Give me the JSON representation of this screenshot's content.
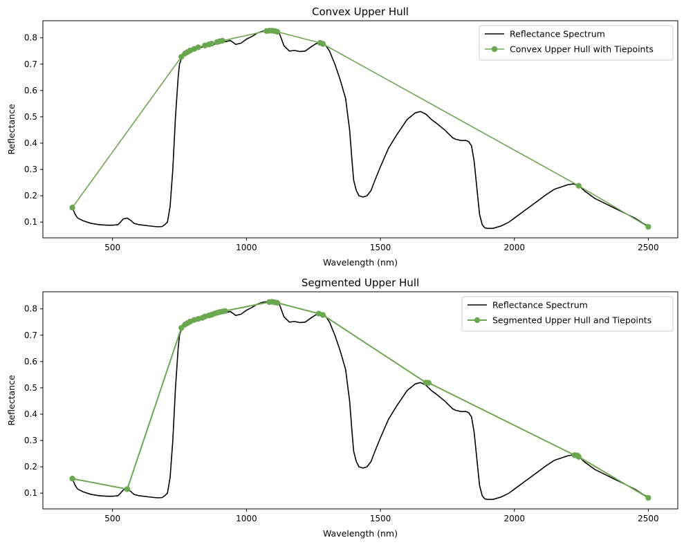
{
  "colors": {
    "spectrum": "#000000",
    "hull": "#6aa84f",
    "legend_border": "#cccccc"
  },
  "chart_data": [
    {
      "type": "line",
      "title": "Convex Upper Hull",
      "xlabel": "Wavelength (nm)",
      "ylabel": "Reflectance",
      "xlim": [
        240,
        2610
      ],
      "ylim": [
        0.04,
        0.865
      ],
      "xticks": [
        500,
        1000,
        1500,
        2000,
        2500
      ],
      "yticks": [
        0.1,
        0.2,
        0.3,
        0.4,
        0.5,
        0.6,
        0.7,
        0.8
      ],
      "grid": false,
      "legend_position": "top-right",
      "series": [
        {
          "name": "Reflectance Spectrum",
          "style": "line",
          "x": [
            350,
            360,
            370,
            390,
            420,
            450,
            480,
            500,
            520,
            530,
            540,
            555,
            570,
            580,
            600,
            640,
            670,
            685,
            695,
            705,
            715,
            725,
            735,
            745,
            750,
            760,
            770,
            800,
            850,
            880,
            900,
            920,
            940,
            960,
            980,
            1000,
            1020,
            1040,
            1060,
            1080,
            1100,
            1120,
            1140,
            1160,
            1180,
            1200,
            1220,
            1240,
            1260,
            1280,
            1290,
            1310,
            1330,
            1350,
            1370,
            1385,
            1395,
            1400,
            1410,
            1420,
            1435,
            1450,
            1465,
            1480,
            1500,
            1530,
            1560,
            1600,
            1630,
            1650,
            1670,
            1690,
            1710,
            1740,
            1770,
            1780,
            1800,
            1820,
            1830,
            1840,
            1850,
            1860,
            1870,
            1880,
            1890,
            1900,
            1920,
            1950,
            1980,
            2000,
            2040,
            2080,
            2120,
            2150,
            2180,
            2200,
            2220,
            2240,
            2260,
            2280,
            2300,
            2350,
            2400,
            2450,
            2480,
            2500
          ],
          "y": [
            0.155,
            0.13,
            0.115,
            0.105,
            0.095,
            0.09,
            0.088,
            0.088,
            0.09,
            0.1,
            0.112,
            0.115,
            0.105,
            0.095,
            0.09,
            0.085,
            0.082,
            0.083,
            0.09,
            0.1,
            0.16,
            0.3,
            0.5,
            0.65,
            0.7,
            0.73,
            0.745,
            0.755,
            0.77,
            0.775,
            0.79,
            0.785,
            0.79,
            0.775,
            0.78,
            0.795,
            0.805,
            0.818,
            0.825,
            0.828,
            0.828,
            0.825,
            0.77,
            0.75,
            0.752,
            0.748,
            0.75,
            0.765,
            0.778,
            0.785,
            0.78,
            0.75,
            0.7,
            0.64,
            0.57,
            0.45,
            0.32,
            0.26,
            0.22,
            0.2,
            0.195,
            0.2,
            0.22,
            0.26,
            0.31,
            0.38,
            0.43,
            0.49,
            0.515,
            0.52,
            0.51,
            0.49,
            0.475,
            0.45,
            0.42,
            0.415,
            0.41,
            0.41,
            0.405,
            0.39,
            0.33,
            0.23,
            0.13,
            0.09,
            0.078,
            0.076,
            0.076,
            0.085,
            0.1,
            0.115,
            0.145,
            0.175,
            0.205,
            0.225,
            0.235,
            0.242,
            0.245,
            0.24,
            0.22,
            0.205,
            0.19,
            0.165,
            0.14,
            0.115,
            0.095,
            0.085
          ]
        },
        {
          "name": "Convex Upper Hull with Tiepoints",
          "style": "line-markers",
          "x": [
            350,
            757,
            770,
            780,
            790,
            805,
            820,
            845,
            860,
            870,
            890,
            900,
            910,
            1075,
            1085,
            1095,
            1105,
            1115,
            1275,
            1285,
            2240,
            2500
          ],
          "y": [
            0.155,
            0.728,
            0.74,
            0.746,
            0.752,
            0.758,
            0.764,
            0.771,
            0.775,
            0.778,
            0.784,
            0.787,
            0.789,
            0.826,
            0.827,
            0.827,
            0.826,
            0.823,
            0.781,
            0.777,
            0.238,
            0.082
          ]
        }
      ]
    },
    {
      "type": "line",
      "title": "Segmented Upper Hull",
      "xlabel": "Wavelength (nm)",
      "ylabel": "Reflectance",
      "xlim": [
        240,
        2610
      ],
      "ylim": [
        0.04,
        0.865
      ],
      "xticks": [
        500,
        1000,
        1500,
        2000,
        2500
      ],
      "yticks": [
        0.1,
        0.2,
        0.3,
        0.4,
        0.5,
        0.6,
        0.7,
        0.8
      ],
      "grid": false,
      "legend_position": "top-right",
      "series": [
        {
          "name": "Reflectance Spectrum",
          "style": "line",
          "x": [
            350,
            360,
            370,
            390,
            420,
            450,
            480,
            500,
            520,
            530,
            540,
            555,
            570,
            580,
            600,
            640,
            670,
            685,
            695,
            705,
            715,
            725,
            735,
            745,
            750,
            760,
            770,
            800,
            850,
            880,
            900,
            920,
            940,
            960,
            980,
            1000,
            1020,
            1040,
            1060,
            1080,
            1100,
            1120,
            1140,
            1160,
            1180,
            1200,
            1220,
            1240,
            1260,
            1280,
            1290,
            1310,
            1330,
            1350,
            1370,
            1385,
            1395,
            1400,
            1410,
            1420,
            1435,
            1450,
            1465,
            1480,
            1500,
            1530,
            1560,
            1600,
            1630,
            1650,
            1670,
            1690,
            1710,
            1740,
            1770,
            1780,
            1800,
            1820,
            1830,
            1840,
            1850,
            1860,
            1870,
            1880,
            1890,
            1900,
            1920,
            1950,
            1980,
            2000,
            2040,
            2080,
            2120,
            2150,
            2180,
            2200,
            2220,
            2240,
            2260,
            2280,
            2300,
            2350,
            2400,
            2450,
            2480,
            2500
          ],
          "y": [
            0.155,
            0.13,
            0.115,
            0.105,
            0.095,
            0.09,
            0.088,
            0.088,
            0.09,
            0.1,
            0.112,
            0.115,
            0.105,
            0.095,
            0.09,
            0.085,
            0.082,
            0.083,
            0.09,
            0.1,
            0.16,
            0.3,
            0.5,
            0.65,
            0.7,
            0.73,
            0.745,
            0.755,
            0.77,
            0.775,
            0.79,
            0.785,
            0.79,
            0.775,
            0.78,
            0.795,
            0.805,
            0.818,
            0.825,
            0.828,
            0.828,
            0.825,
            0.77,
            0.75,
            0.752,
            0.748,
            0.75,
            0.765,
            0.778,
            0.785,
            0.78,
            0.75,
            0.7,
            0.64,
            0.57,
            0.45,
            0.32,
            0.26,
            0.22,
            0.2,
            0.195,
            0.2,
            0.22,
            0.26,
            0.31,
            0.38,
            0.43,
            0.49,
            0.515,
            0.52,
            0.51,
            0.49,
            0.475,
            0.45,
            0.42,
            0.415,
            0.41,
            0.41,
            0.405,
            0.39,
            0.33,
            0.23,
            0.13,
            0.09,
            0.078,
            0.076,
            0.076,
            0.085,
            0.1,
            0.115,
            0.145,
            0.175,
            0.205,
            0.225,
            0.235,
            0.242,
            0.245,
            0.24,
            0.22,
            0.205,
            0.19,
            0.165,
            0.14,
            0.115,
            0.095,
            0.085
          ]
        },
        {
          "name": "Segmented Upper Hull and Tiepoints",
          "style": "line-markers",
          "x": [
            350,
            555,
            757,
            770,
            780,
            790,
            805,
            820,
            835,
            845,
            860,
            870,
            880,
            890,
            900,
            910,
            920,
            1085,
            1095,
            1105,
            1115,
            1270,
            1285,
            1670,
            1680,
            2225,
            2235,
            2240,
            2500
          ],
          "y": [
            0.155,
            0.115,
            0.728,
            0.74,
            0.746,
            0.752,
            0.758,
            0.762,
            0.766,
            0.771,
            0.775,
            0.778,
            0.782,
            0.785,
            0.788,
            0.79,
            0.792,
            0.826,
            0.827,
            0.825,
            0.823,
            0.782,
            0.777,
            0.52,
            0.519,
            0.244,
            0.243,
            0.238,
            0.082
          ]
        }
      ]
    }
  ]
}
